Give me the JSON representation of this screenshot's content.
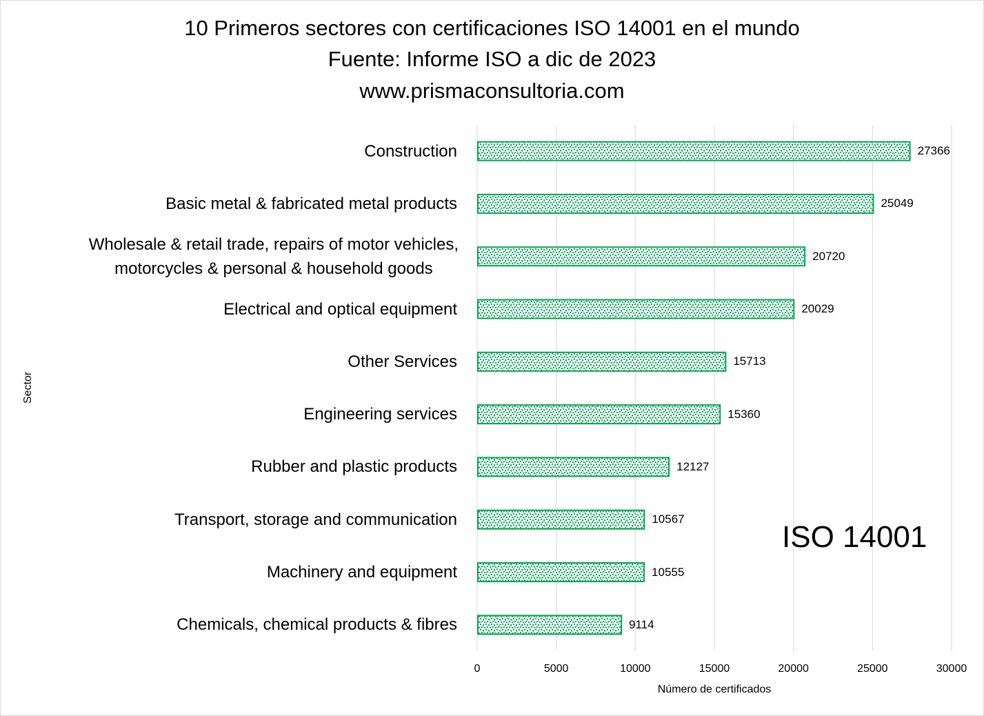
{
  "title": {
    "line1": "10 Primeros sectores con certificaciones ISO 14001 en el mundo",
    "line2": "Fuente: Informe ISO a dic de 2023",
    "line3": "www.prismaconsultoria.com"
  },
  "watermark": "ISO 14001",
  "colors": {
    "bar_stroke": "#00a651",
    "bar_pattern": "#00a651",
    "gridline": "#d9d9d9"
  },
  "chart_data": {
    "type": "bar",
    "orientation": "horizontal",
    "categories": [
      "Construction",
      "Basic metal & fabricated metal products",
      "Wholesale & retail trade, repairs of motor vehicles,\nmotorcycles & personal & household goods",
      "Electrical and optical equipment",
      "Other Services",
      "Engineering services",
      "Rubber and plastic products",
      "Transport, storage and communication",
      "Machinery and equipment",
      "Chemicals, chemical products & fibres"
    ],
    "values": [
      27366,
      25049,
      20720,
      20029,
      15713,
      15360,
      12127,
      10567,
      10555,
      9114
    ],
    "xlabel": "Número de certificados",
    "ylabel": "Sector",
    "xlim": [
      0,
      30000
    ],
    "xticks": [
      "0",
      "5000",
      "10000",
      "15000",
      "20000",
      "25000",
      "30000"
    ],
    "grid": "vertical",
    "legend": "none"
  }
}
